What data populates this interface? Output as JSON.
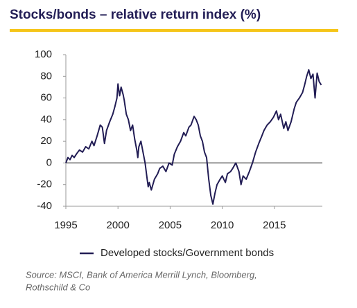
{
  "chart_data": {
    "type": "line",
    "title": "Stocks/bonds – relative return index (%)",
    "x": [
      1995.0,
      1995.2,
      1995.4,
      1995.6,
      1995.8,
      1996.0,
      1996.3,
      1996.6,
      1996.9,
      1997.2,
      1997.5,
      1997.7,
      1998.0,
      1998.3,
      1998.5,
      1998.7,
      1998.9,
      1999.2,
      1999.5,
      1999.7,
      1999.9,
      2000.0,
      2000.15,
      2000.3,
      2000.5,
      2000.6,
      2000.8,
      2001.0,
      2001.2,
      2001.4,
      2001.6,
      2001.8,
      2001.9,
      2002.0,
      2002.2,
      2002.4,
      2002.6,
      2002.8,
      2002.9,
      2003.0,
      2003.2,
      2003.5,
      2003.8,
      2004.0,
      2004.3,
      2004.6,
      2004.9,
      2005.2,
      2005.4,
      2005.7,
      2006.0,
      2006.3,
      2006.5,
      2006.8,
      2007.0,
      2007.3,
      2007.5,
      2007.7,
      2007.9,
      2008.1,
      2008.3,
      2008.5,
      2008.7,
      2008.9,
      2009.1,
      2009.3,
      2009.5,
      2009.8,
      2010.0,
      2010.3,
      2010.5,
      2010.8,
      2011.0,
      2011.3,
      2011.6,
      2011.8,
      2012.0,
      2012.3,
      2012.6,
      2012.9,
      2013.2,
      2013.5,
      2013.8,
      2014.0,
      2014.3,
      2014.6,
      2014.9,
      2015.2,
      2015.4,
      2015.6,
      2015.9,
      2016.1,
      2016.3,
      2016.6,
      2016.9,
      2017.1,
      2017.4,
      2017.7,
      2017.9,
      2018.1,
      2018.3,
      2018.5,
      2018.7,
      2018.9,
      2019.1,
      2019.3,
      2019.5
    ],
    "series": [
      {
        "name": "Developed stocks/Government bonds",
        "color": "#221d55",
        "values": [
          0,
          5,
          3,
          7,
          5,
          8,
          12,
          10,
          15,
          13,
          20,
          16,
          25,
          35,
          33,
          18,
          30,
          38,
          45,
          52,
          60,
          73,
          62,
          70,
          63,
          58,
          45,
          40,
          30,
          35,
          22,
          12,
          5,
          15,
          20,
          10,
          0,
          -15,
          -22,
          -18,
          -25,
          -15,
          -10,
          -5,
          -3,
          -8,
          0,
          -2,
          8,
          15,
          20,
          28,
          25,
          33,
          35,
          43,
          40,
          35,
          25,
          20,
          10,
          5,
          -15,
          -30,
          -38,
          -28,
          -20,
          -15,
          -12,
          -18,
          -10,
          -8,
          -5,
          0,
          -8,
          -20,
          -12,
          -15,
          -8,
          0,
          10,
          18,
          25,
          30,
          35,
          38,
          42,
          48,
          40,
          45,
          32,
          38,
          30,
          38,
          50,
          56,
          60,
          65,
          72,
          80,
          86,
          78,
          82,
          60,
          83,
          75,
          72
        ]
      }
    ],
    "xlim": [
      1995,
      2019.6
    ],
    "ylim": [
      -40,
      100
    ],
    "xticks": [
      1995,
      2000,
      2005,
      2010,
      2015
    ],
    "yticks": [
      -40,
      -20,
      0,
      20,
      40,
      60,
      80,
      100
    ],
    "source": [
      "Source: MSCI, Bank of America Merrill Lynch, Bloomberg,",
      "Rothschild & Co"
    ]
  }
}
